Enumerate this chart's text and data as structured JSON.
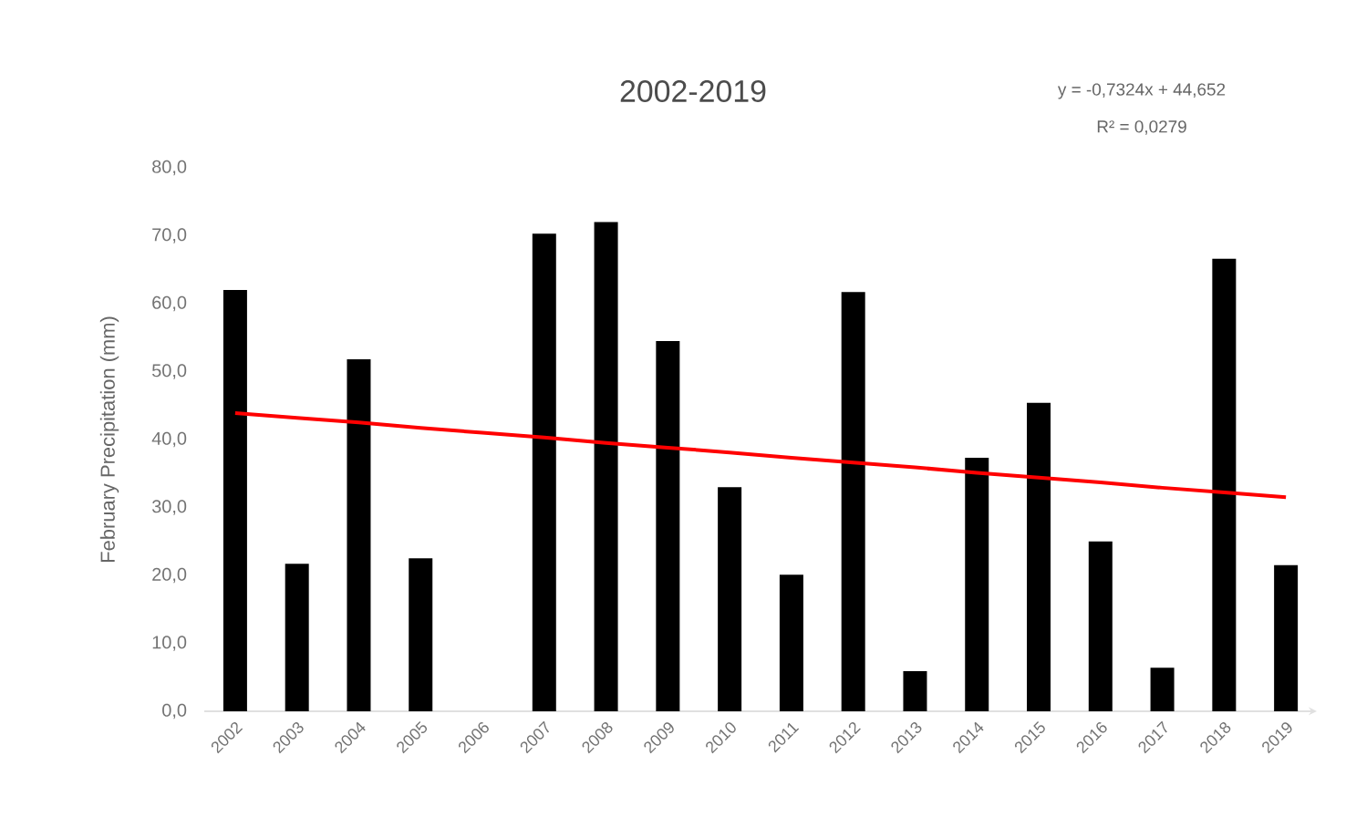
{
  "chart_data": {
    "type": "bar",
    "title": "2002-2019",
    "ylabel": "February Precipitation (mm)",
    "categories": [
      "2002",
      "2003",
      "2004",
      "2005",
      "2006",
      "2007",
      "2008",
      "2009",
      "2010",
      "2011",
      "2012",
      "2013",
      "2014",
      "2015",
      "2016",
      "2017",
      "2018",
      "2019"
    ],
    "series": [
      {
        "color": "#000000",
        "values": [
          62.0,
          21.7,
          51.8,
          22.5,
          null,
          70.3,
          72.0,
          54.5,
          33.0,
          20.1,
          61.7,
          5.9,
          37.3,
          45.4,
          25.0,
          6.4,
          66.6,
          21.5
        ]
      },
      {
        "type": "line",
        "color": "#ff0000",
        "values": [
          43.9,
          43.2,
          42.5,
          41.7,
          41.0,
          40.3,
          39.5,
          38.8,
          38.1,
          37.3,
          36.6,
          35.9,
          35.1,
          34.4,
          33.7,
          32.9,
          32.2,
          31.5
        ]
      }
    ],
    "ylim": [
      0,
      80
    ],
    "yticks": [
      {
        "value": 0,
        "label": "0,0"
      },
      {
        "value": 10,
        "label": "10,0"
      },
      {
        "value": 20,
        "label": "20,0"
      },
      {
        "value": 30,
        "label": "30,0"
      },
      {
        "value": 40,
        "label": "40,0"
      },
      {
        "value": 50,
        "label": "50,0"
      },
      {
        "value": 60,
        "label": "60,0"
      },
      {
        "value": 70,
        "label": "70,0"
      },
      {
        "value": 80,
        "label": "80,0"
      }
    ],
    "annotations": [
      "y = -0,7324x + 44,652",
      "R² = 0,0279"
    ],
    "grid": false
  }
}
